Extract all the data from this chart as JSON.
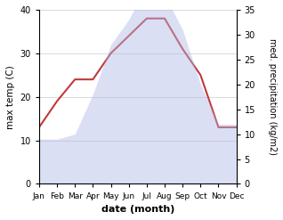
{
  "months": [
    "Jan",
    "Feb",
    "Mar",
    "Apr",
    "May",
    "Jun",
    "Jul",
    "Aug",
    "Sep",
    "Oct",
    "Nov",
    "Dec"
  ],
  "precipitation": [
    9,
    9,
    10,
    18,
    28,
    33,
    40,
    38,
    31,
    20,
    12,
    12
  ],
  "max_temp": [
    13,
    19,
    24,
    24,
    30,
    34,
    38,
    38,
    31,
    25,
    13,
    13
  ],
  "precip_color": "#b0b8e8",
  "temp_color": "#c0393b",
  "left_ylim": [
    0,
    40
  ],
  "right_ylim": [
    0,
    35
  ],
  "left_yticks": [
    0,
    10,
    20,
    30,
    40
  ],
  "right_yticks": [
    0,
    5,
    10,
    15,
    20,
    25,
    30,
    35
  ],
  "xlabel": "date (month)",
  "ylabel_left": "max temp (C)",
  "ylabel_right": "med. precipitation (kg/m2)",
  "bg_color": "#ffffff",
  "fill_alpha": 0.45
}
